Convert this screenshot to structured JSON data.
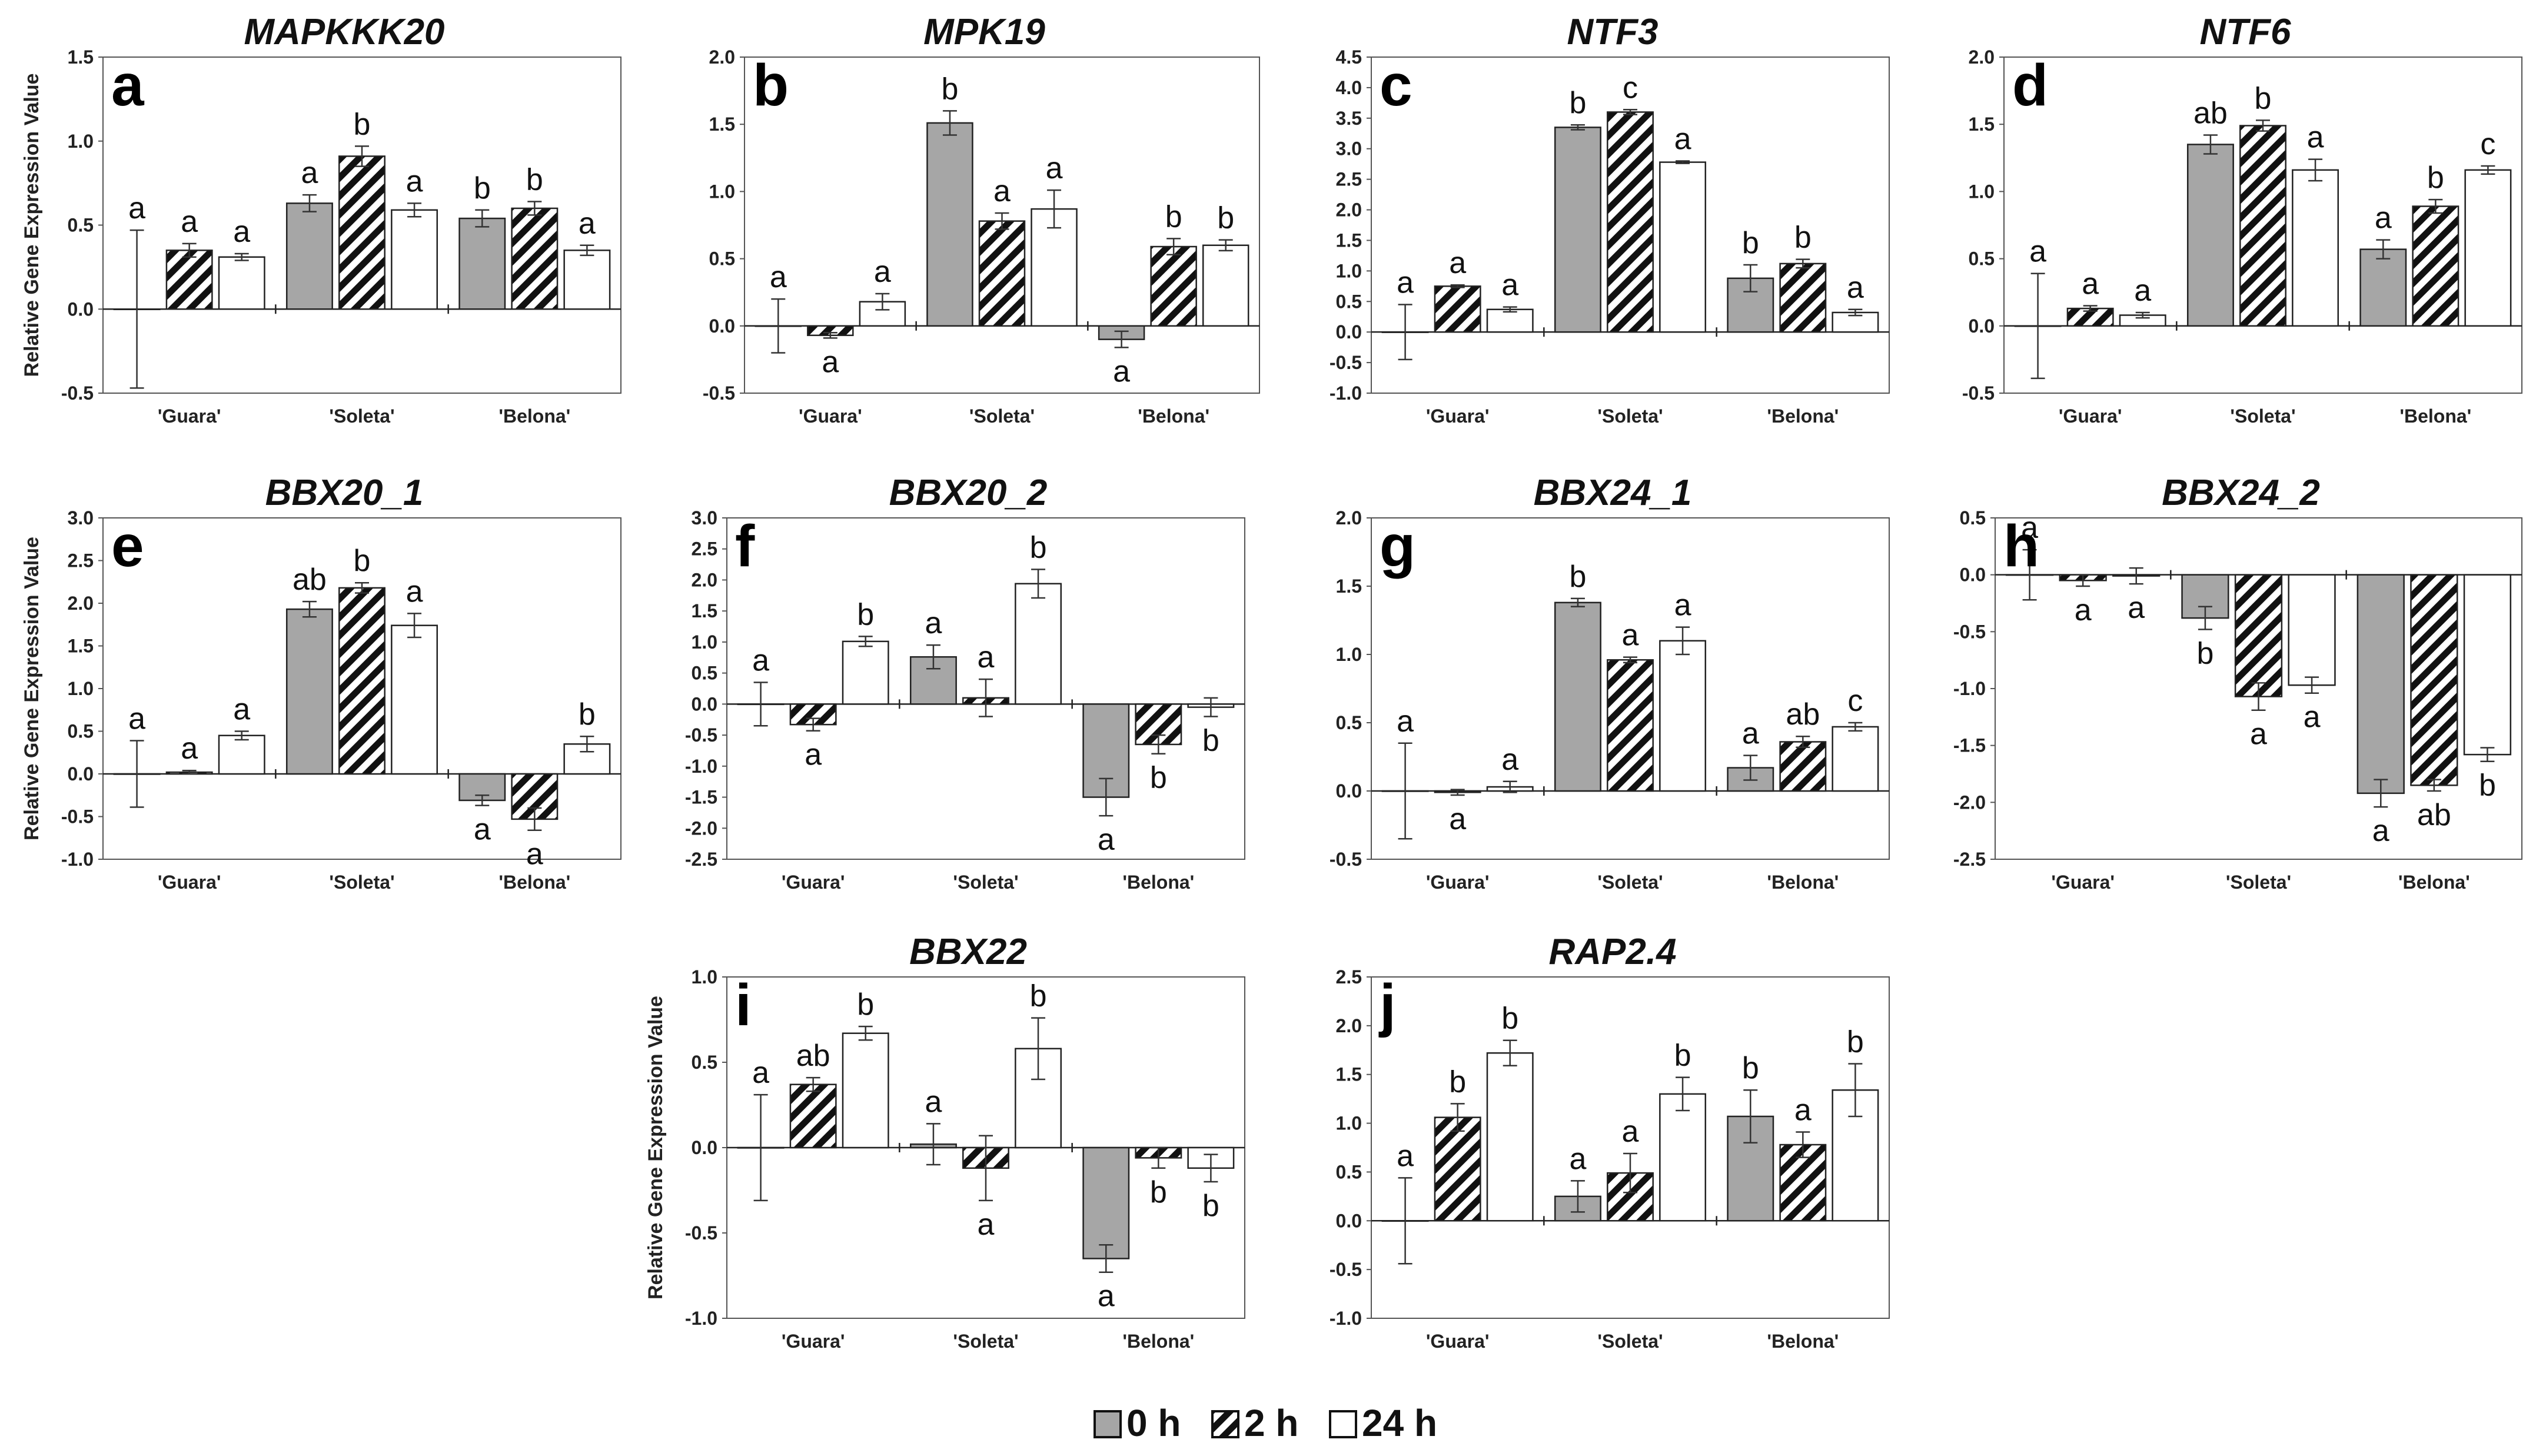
{
  "chart_data": [
    {
      "type": "bar",
      "panel": "a",
      "title": "MAPKKK20",
      "ylabel": "Relative Gene Expression Value",
      "categories": [
        "'Guara'",
        "'Soleta'",
        "'Belona'"
      ],
      "ylim": [
        -0.5,
        1.5
      ],
      "yticks": [
        "-0.5",
        "0.0",
        "0.5",
        "1.0",
        "1.5"
      ],
      "series": [
        {
          "name": "0 h",
          "values": [
            0.0,
            0.63,
            0.54
          ],
          "errors": [
            0.47,
            0.05,
            0.05
          ],
          "letters": [
            "a",
            "a",
            "b"
          ]
        },
        {
          "name": "2 h",
          "values": [
            0.35,
            0.91,
            0.6
          ],
          "errors": [
            0.04,
            0.06,
            0.04
          ],
          "letters": [
            "a",
            "b",
            "b"
          ]
        },
        {
          "name": "24 h",
          "values": [
            0.31,
            0.59,
            0.35
          ],
          "errors": [
            0.02,
            0.04,
            0.03
          ],
          "letters": [
            "a",
            "a",
            "a"
          ]
        }
      ]
    },
    {
      "type": "bar",
      "panel": "b",
      "title": "MPK19",
      "ylabel": "",
      "categories": [
        "'Guara'",
        "'Soleta'",
        "'Belona'"
      ],
      "ylim": [
        -0.5,
        2.0
      ],
      "yticks": [
        "-0.5",
        "0.0",
        "0.5",
        "1.0",
        "1.5",
        "2.0"
      ],
      "series": [
        {
          "name": "0 h",
          "values": [
            0.0,
            1.51,
            -0.1
          ],
          "errors": [
            0.2,
            0.09,
            0.06
          ],
          "letters": [
            "a",
            "b",
            "a"
          ]
        },
        {
          "name": "2 h",
          "values": [
            -0.07,
            0.78,
            0.59
          ],
          "errors": [
            0.02,
            0.06,
            0.06
          ],
          "letters": [
            "a",
            "a",
            "b"
          ]
        },
        {
          "name": "24 h",
          "values": [
            0.18,
            0.87,
            0.6
          ],
          "errors": [
            0.06,
            0.14,
            0.04
          ],
          "letters": [
            "a",
            "a",
            "b"
          ]
        }
      ]
    },
    {
      "type": "bar",
      "panel": "c",
      "title": "NTF3",
      "ylabel": "",
      "categories": [
        "'Guara'",
        "'Soleta'",
        "'Belona'"
      ],
      "ylim": [
        -1.0,
        4.5
      ],
      "yticks": [
        "-1.0",
        "-0.5",
        "0.0",
        "0.5",
        "1.0",
        "1.5",
        "2.0",
        "2.5",
        "3.0",
        "3.5",
        "4.0",
        "4.5"
      ],
      "series": [
        {
          "name": "0 h",
          "values": [
            0.0,
            3.35,
            0.88
          ],
          "errors": [
            0.45,
            0.04,
            0.22
          ],
          "letters": [
            "a",
            "b",
            "b"
          ]
        },
        {
          "name": "2 h",
          "values": [
            0.75,
            3.6,
            1.12
          ],
          "errors": [
            0.02,
            0.04,
            0.07
          ],
          "letters": [
            "a",
            "c",
            "b"
          ]
        },
        {
          "name": "24 h",
          "values": [
            0.37,
            2.78,
            0.32
          ],
          "errors": [
            0.04,
            0.02,
            0.05
          ],
          "letters": [
            "a",
            "a",
            "a"
          ]
        }
      ]
    },
    {
      "type": "bar",
      "panel": "d",
      "title": "NTF6",
      "ylabel": "",
      "categories": [
        "'Guara'",
        "'Soleta'",
        "'Belona'"
      ],
      "ylim": [
        -0.5,
        2.0
      ],
      "yticks": [
        "-0.5",
        "0.0",
        "0.5",
        "1.0",
        "1.5",
        "2.0"
      ],
      "series": [
        {
          "name": "0 h",
          "values": [
            0.0,
            1.35,
            0.57
          ],
          "errors": [
            0.39,
            0.07,
            0.07
          ],
          "letters": [
            "a",
            "ab",
            "a"
          ]
        },
        {
          "name": "2 h",
          "values": [
            0.13,
            1.49,
            0.89
          ],
          "errors": [
            0.02,
            0.04,
            0.05
          ],
          "letters": [
            "a",
            "b",
            "b"
          ]
        },
        {
          "name": "24 h",
          "values": [
            0.08,
            1.16,
            1.16
          ],
          "errors": [
            0.02,
            0.08,
            0.03
          ],
          "letters": [
            "a",
            "a",
            "c"
          ]
        }
      ]
    },
    {
      "type": "bar",
      "panel": "e",
      "title": "BBX20_1",
      "ylabel": "Relative Gene Expression Value",
      "categories": [
        "'Guara'",
        "'Soleta'",
        "'Belona'"
      ],
      "ylim": [
        -1.0,
        3.0
      ],
      "yticks": [
        "-1.0",
        "-0.5",
        "0.0",
        "0.5",
        "1.0",
        "1.5",
        "2.0",
        "2.5",
        "3.0"
      ],
      "series": [
        {
          "name": "0 h",
          "values": [
            0.0,
            1.93,
            -0.31
          ],
          "errors": [
            0.39,
            0.09,
            0.06
          ],
          "letters": [
            "a",
            "ab",
            "a"
          ]
        },
        {
          "name": "2 h",
          "values": [
            0.02,
            2.18,
            -0.53
          ],
          "errors": [
            0.02,
            0.06,
            0.13
          ],
          "letters": [
            "a",
            "b",
            "a"
          ]
        },
        {
          "name": "24 h",
          "values": [
            0.45,
            1.74,
            0.35
          ],
          "errors": [
            0.05,
            0.14,
            0.09
          ],
          "letters": [
            "a",
            "a",
            "b"
          ]
        }
      ]
    },
    {
      "type": "bar",
      "panel": "f",
      "title": "BBX20_2",
      "ylabel": "",
      "categories": [
        "'Guara'",
        "'Soleta'",
        "'Belona'"
      ],
      "ylim": [
        -2.5,
        3.0
      ],
      "yticks": [
        "-2.5",
        "-2.0",
        "-1.5",
        "-1.0",
        "-0.5",
        "0.0",
        "0.5",
        "1.0",
        "1.5",
        "2.0",
        "2.5",
        "3.0"
      ],
      "series": [
        {
          "name": "0 h",
          "values": [
            0.0,
            0.76,
            -1.5
          ],
          "errors": [
            0.35,
            0.19,
            0.3
          ],
          "letters": [
            "a",
            "a",
            "a"
          ]
        },
        {
          "name": "2 h",
          "values": [
            -0.33,
            0.1,
            -0.65
          ],
          "errors": [
            0.1,
            0.3,
            0.15
          ],
          "letters": [
            "a",
            "a",
            "b"
          ]
        },
        {
          "name": "24 h",
          "values": [
            1.01,
            1.94,
            -0.05
          ],
          "errors": [
            0.08,
            0.23,
            0.15
          ],
          "letters": [
            "b",
            "b",
            "b"
          ]
        }
      ]
    },
    {
      "type": "bar",
      "panel": "g",
      "title": "BBX24_1",
      "ylabel": "",
      "categories": [
        "'Guara'",
        "'Soleta'",
        "'Belona'"
      ],
      "ylim": [
        -0.5,
        2.0
      ],
      "yticks": [
        "-0.5",
        "0.0",
        "0.5",
        "1.0",
        "1.5",
        "2.0"
      ],
      "series": [
        {
          "name": "0 h",
          "values": [
            0.0,
            1.38,
            0.17
          ],
          "errors": [
            0.35,
            0.03,
            0.09
          ],
          "letters": [
            "a",
            "b",
            "a"
          ]
        },
        {
          "name": "2 h",
          "values": [
            -0.01,
            0.96,
            0.36
          ],
          "errors": [
            0.02,
            0.02,
            0.04
          ],
          "letters": [
            "a",
            "a",
            "ab"
          ]
        },
        {
          "name": "24 h",
          "values": [
            0.03,
            1.1,
            0.47
          ],
          "errors": [
            0.04,
            0.1,
            0.03
          ],
          "letters": [
            "a",
            "a",
            "c"
          ]
        }
      ]
    },
    {
      "type": "bar",
      "panel": "h",
      "title": "BBX24_2",
      "ylabel": "",
      "categories": [
        "'Guara'",
        "'Soleta'",
        "'Belona'"
      ],
      "ylim": [
        -2.5,
        0.5
      ],
      "yticks": [
        "-2.5",
        "-2.0",
        "-1.5",
        "-1.0",
        "-0.5",
        "0.0",
        "0.5"
      ],
      "series": [
        {
          "name": "0 h",
          "values": [
            0.0,
            -0.38,
            -1.92
          ],
          "errors": [
            0.22,
            0.1,
            0.12
          ],
          "letters": [
            "a",
            "b",
            "a"
          ]
        },
        {
          "name": "2 h",
          "values": [
            -0.05,
            -1.07,
            -1.85
          ],
          "errors": [
            0.05,
            0.12,
            0.05
          ],
          "letters": [
            "a",
            "a",
            "ab"
          ]
        },
        {
          "name": "24 h",
          "values": [
            -0.01,
            -0.97,
            -1.58
          ],
          "errors": [
            0.07,
            0.07,
            0.06
          ],
          "letters": [
            "a",
            "a",
            "b"
          ]
        }
      ]
    },
    {
      "type": "bar",
      "panel": "i",
      "title": "BBX22",
      "ylabel": "Relative Gene Expression Value",
      "categories": [
        "'Guara'",
        "'Soleta'",
        "'Belona'"
      ],
      "ylim": [
        -1.0,
        1.0
      ],
      "yticks": [
        "-1.0",
        "-0.5",
        "0.0",
        "0.5",
        "1.0"
      ],
      "series": [
        {
          "name": "0 h",
          "values": [
            0.0,
            0.02,
            -0.65
          ],
          "errors": [
            0.31,
            0.12,
            0.08
          ],
          "letters": [
            "a",
            "a",
            "a"
          ]
        },
        {
          "name": "2 h",
          "values": [
            0.37,
            -0.12,
            -0.06
          ],
          "errors": [
            0.04,
            0.19,
            0.06
          ],
          "letters": [
            "ab",
            "a",
            "b"
          ]
        },
        {
          "name": "24 h",
          "values": [
            0.67,
            0.58,
            -0.12
          ],
          "errors": [
            0.04,
            0.18,
            0.08
          ],
          "letters": [
            "b",
            "b",
            "b"
          ]
        }
      ]
    },
    {
      "type": "bar",
      "panel": "j",
      "title": "RAP2.4",
      "ylabel": "",
      "categories": [
        "'Guara'",
        "'Soleta'",
        "'Belona'"
      ],
      "ylim": [
        -1.0,
        2.5
      ],
      "yticks": [
        "-1.0",
        "-0.5",
        "0.0",
        "0.5",
        "1.0",
        "1.5",
        "2.0",
        "2.5"
      ],
      "series": [
        {
          "name": "0 h",
          "values": [
            0.0,
            0.25,
            1.07
          ],
          "errors": [
            0.44,
            0.16,
            0.27
          ],
          "letters": [
            "a",
            "a",
            "b"
          ]
        },
        {
          "name": "2 h",
          "values": [
            1.06,
            0.49,
            0.78
          ],
          "errors": [
            0.14,
            0.2,
            0.13
          ],
          "letters": [
            "b",
            "a",
            "a"
          ]
        },
        {
          "name": "24 h",
          "values": [
            1.72,
            1.3,
            1.34
          ],
          "errors": [
            0.13,
            0.17,
            0.27
          ],
          "letters": [
            "b",
            "b",
            "b"
          ]
        }
      ]
    }
  ],
  "legend": {
    "items": [
      {
        "label": "0 h",
        "style": "gray"
      },
      {
        "label": "2 h",
        "style": "hatched"
      },
      {
        "label": "24 h",
        "style": "white"
      }
    ]
  },
  "colors": {
    "bar_0h": "#a6a6a6",
    "bar_2h_hatch": "#111111",
    "bar_24h": "#ffffff",
    "axis": "#555555"
  }
}
